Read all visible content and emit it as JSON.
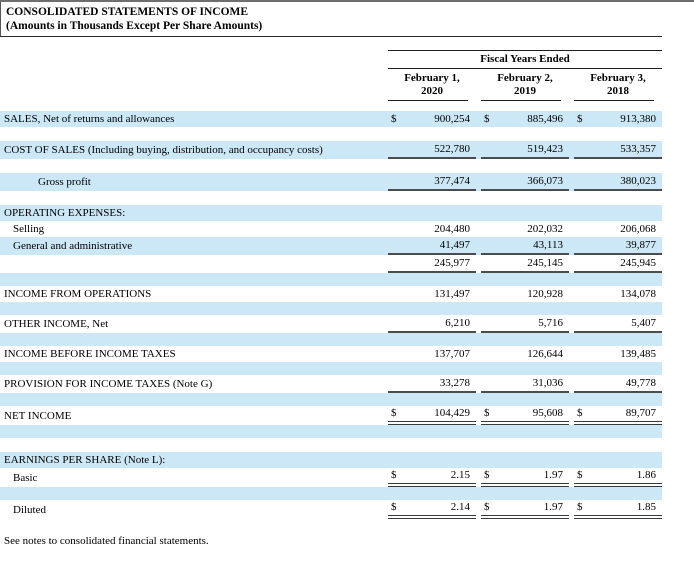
{
  "page": {
    "title": "CONSOLIDATED STATEMENTS OF INCOME",
    "subtitle": "(Amounts in Thousands Except Per Share Amounts)",
    "footnote": "See notes to consolidated financial statements."
  },
  "colors": {
    "row_shade": "#cce7f5"
  },
  "table": {
    "group_header": "Fiscal Years Ended",
    "currency_symbol": "$",
    "columns": [
      {
        "line1": "February 1,",
        "line2": "2020"
      },
      {
        "line1": "February 2,",
        "line2": "2019"
      },
      {
        "line1": "February 3,",
        "line2": "2018"
      }
    ],
    "rows": [
      {
        "label": "SALES, Net of returns and allowances",
        "indent": 0,
        "shaded": true,
        "dollar": true,
        "underline": "none",
        "values": [
          "900,254",
          "885,496",
          "913,380"
        ]
      },
      {
        "spacer": true,
        "shaded": false
      },
      {
        "label": "COST OF SALES (Including buying, distribution, and occupancy costs)",
        "indent": 0,
        "shaded": true,
        "dollar": false,
        "underline": "single",
        "values": [
          "522,780",
          "519,423",
          "533,357"
        ]
      },
      {
        "spacer": true,
        "shaded": false
      },
      {
        "label": "Gross profit",
        "indent": 2,
        "shaded": true,
        "dollar": false,
        "underline": "single",
        "values": [
          "377,474",
          "366,073",
          "380,023"
        ]
      },
      {
        "spacer": true,
        "shaded": false
      },
      {
        "label": "OPERATING EXPENSES:",
        "indent": 0,
        "shaded": true,
        "dollar": false,
        "underline": "none",
        "values": null
      },
      {
        "label": "Selling",
        "indent": 1,
        "shaded": false,
        "dollar": false,
        "underline": "none",
        "values": [
          "204,480",
          "202,032",
          "206,068"
        ]
      },
      {
        "label": "General and administrative",
        "indent": 1,
        "shaded": true,
        "dollar": false,
        "underline": "single",
        "values": [
          "41,497",
          "43,113",
          "39,877"
        ]
      },
      {
        "label": "",
        "indent": 0,
        "shaded": false,
        "dollar": false,
        "underline": "single",
        "values": [
          "245,977",
          "245,145",
          "245,945"
        ]
      },
      {
        "spacer": true,
        "shaded": true
      },
      {
        "label": "INCOME FROM OPERATIONS",
        "indent": 0,
        "shaded": false,
        "dollar": false,
        "underline": "none",
        "values": [
          "131,497",
          "120,928",
          "134,078"
        ]
      },
      {
        "spacer": true,
        "shaded": true
      },
      {
        "label": "OTHER INCOME, Net",
        "indent": 0,
        "shaded": false,
        "dollar": false,
        "underline": "single",
        "values": [
          "6,210",
          "5,716",
          "5,407"
        ]
      },
      {
        "spacer": true,
        "shaded": true
      },
      {
        "label": "INCOME BEFORE INCOME TAXES",
        "indent": 0,
        "shaded": false,
        "dollar": false,
        "underline": "none",
        "values": [
          "137,707",
          "126,644",
          "139,485"
        ]
      },
      {
        "spacer": true,
        "shaded": true
      },
      {
        "label": "PROVISION FOR INCOME TAXES (Note G)",
        "indent": 0,
        "shaded": false,
        "dollar": false,
        "underline": "single",
        "values": [
          "33,278",
          "31,036",
          "49,778"
        ]
      },
      {
        "spacer": true,
        "shaded": true
      },
      {
        "label": "NET INCOME",
        "indent": 0,
        "shaded": false,
        "dollar": true,
        "underline": "double",
        "values": [
          "104,429",
          "95,608",
          "89,707"
        ]
      },
      {
        "spacer": true,
        "shaded": true
      },
      {
        "spacer": true,
        "shaded": false
      },
      {
        "label": "EARNINGS PER SHARE (Note L):",
        "indent": 0,
        "shaded": true,
        "dollar": false,
        "underline": "none",
        "values": null
      },
      {
        "label": "Basic",
        "indent": 1,
        "shaded": false,
        "dollar": true,
        "underline": "double",
        "values": [
          "2.15",
          "1.97",
          "1.86"
        ]
      },
      {
        "spacer": true,
        "shaded": true
      },
      {
        "label": "Diluted",
        "indent": 1,
        "shaded": false,
        "dollar": true,
        "underline": "double",
        "values": [
          "2.14",
          "1.97",
          "1.85"
        ]
      }
    ]
  }
}
